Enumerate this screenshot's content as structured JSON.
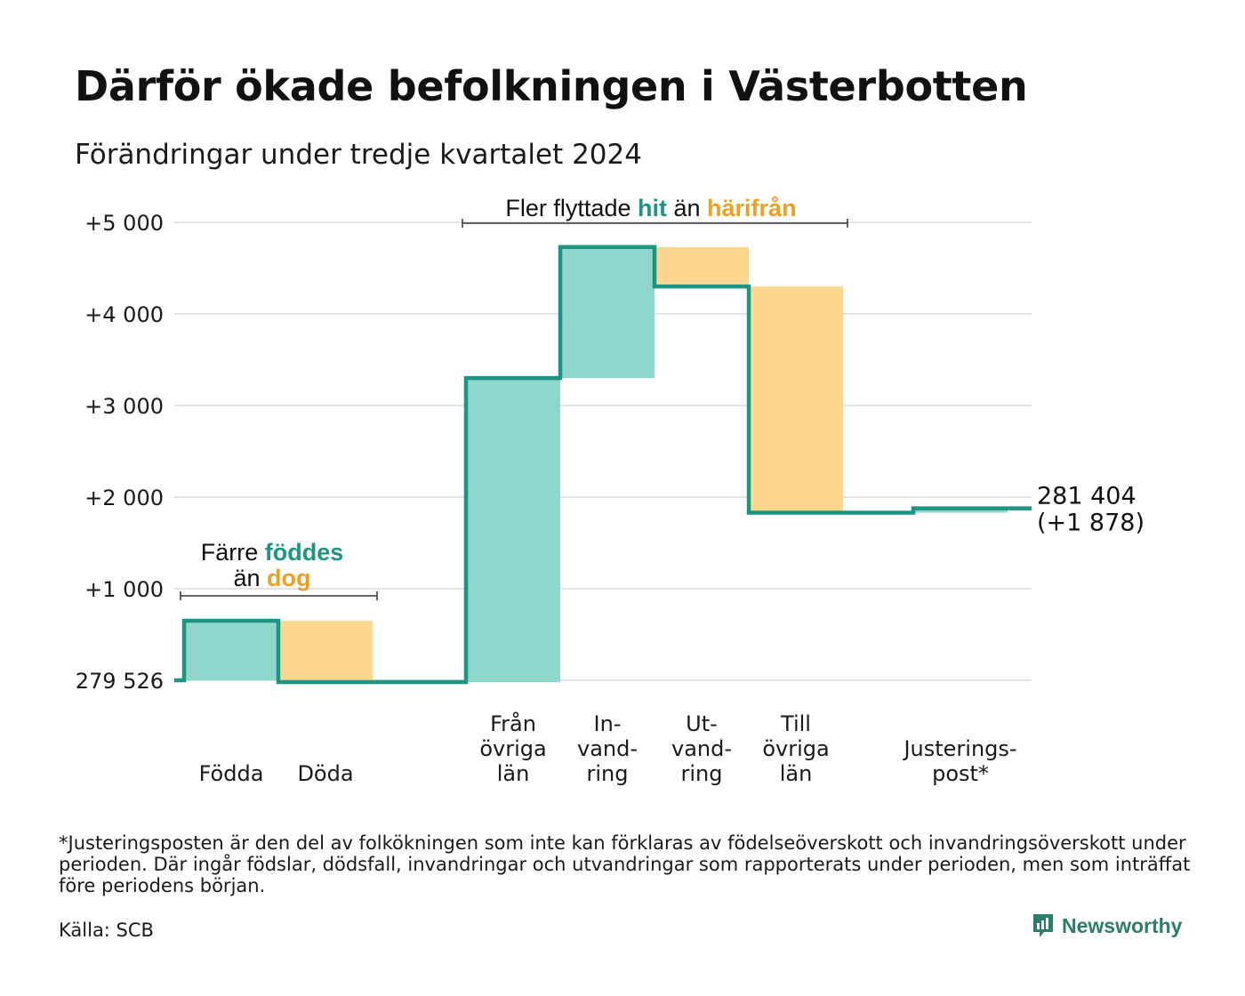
{
  "title": "Därför ökade befolkningen i Västerbotten",
  "subtitle": "Förändringar under tredje kvartalet 2024",
  "chart_data": {
    "type": "waterfall",
    "baseline": 279526,
    "baseline_label": "279 526",
    "y_ticks": [
      {
        "value": 1000,
        "label": "+1 000"
      },
      {
        "value": 2000,
        "label": "+2 000"
      },
      {
        "value": 3000,
        "label": "+3 000"
      },
      {
        "value": 4000,
        "label": "+4 000"
      },
      {
        "value": 5000,
        "label": "+5 000"
      }
    ],
    "ylim": [
      0,
      5000
    ],
    "grid": true,
    "steps": [
      {
        "id": "fodda",
        "label_lines": [
          "Födda"
        ],
        "change": 650,
        "kind": "in"
      },
      {
        "id": "doda",
        "label_lines": [
          "Döda"
        ],
        "change": -670,
        "kind": "out"
      },
      {
        "id": "fran",
        "label_lines": [
          "Från",
          "övriga",
          "län"
        ],
        "change": 3320,
        "kind": "in"
      },
      {
        "id": "invand",
        "label_lines": [
          "In-",
          "vand-",
          "ring"
        ],
        "change": 1430,
        "kind": "in"
      },
      {
        "id": "utvand",
        "label_lines": [
          "Ut-",
          "vand-",
          "ring"
        ],
        "change": -430,
        "kind": "out"
      },
      {
        "id": "till",
        "label_lines": [
          "Till",
          "övriga",
          "län"
        ],
        "change": -2470,
        "kind": "out"
      },
      {
        "id": "just",
        "label_lines": [
          "Justerings-",
          "post*"
        ],
        "change": 48,
        "kind": "in"
      }
    ],
    "end_label_lines": [
      "281 404",
      "(+1 878)"
    ],
    "annotations": {
      "births": {
        "lines": [
          [
            {
              "text": "Färre ",
              "kind": "plain"
            },
            {
              "text": "föddes",
              "kind": "in"
            }
          ],
          [
            {
              "text": "än ",
              "kind": "plain"
            },
            {
              "text": "dog",
              "kind": "out"
            }
          ]
        ]
      },
      "migration": {
        "lines": [
          [
            {
              "text": "Fler flyttade ",
              "kind": "plain"
            },
            {
              "text": "hit",
              "kind": "in"
            },
            {
              "text": " än ",
              "kind": "plain"
            },
            {
              "text": "härifrån",
              "kind": "out"
            }
          ]
        ]
      }
    },
    "colors": {
      "line": "#1e9482",
      "in_fill": "#8fd6cb",
      "out_fill": "#fcd790",
      "in_text": "#1e9482",
      "out_text": "#f0a020",
      "grid": "#e4e4e4"
    }
  },
  "footnote": "*Justeringsposten är den del av folkökningen som inte kan förklaras av födelseöverskott och invandringsöverskott under perioden. Där ingår födslar, dödsfall, invandringar och utvandringar som rapporterats under perioden, men som inträffat före periodens början.",
  "source": "Källa: SCB",
  "brand": {
    "name": "Newsworthy",
    "icon": "newsworthy-logo-icon",
    "color": "#2b7e69"
  }
}
